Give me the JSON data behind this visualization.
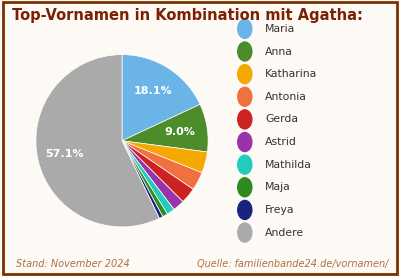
{
  "title": "Top-Vornamen in Kombination mit Agatha:",
  "labels": [
    "Maria",
    "Anna",
    "Katharina",
    "Antonia",
    "Gerda",
    "Astrid",
    "Mathilda",
    "Maja",
    "Freya",
    "Andere"
  ],
  "values": [
    18.2,
    9.1,
    4.0,
    3.5,
    3.0,
    2.2,
    1.5,
    1.0,
    0.7,
    57.6
  ],
  "colors": [
    "#6ab4e8",
    "#4d8c2a",
    "#f5a800",
    "#f07040",
    "#cc2222",
    "#9933aa",
    "#22ccbb",
    "#2e8b20",
    "#1a237e",
    "#aaaaaa"
  ],
  "footer_left": "Stand: November 2024",
  "footer_right": "Quelle: familienbande24.de/vornamen/",
  "title_color": "#7b2000",
  "footer_color": "#b07040",
  "bg_color": "#fdfaf5",
  "border_color": "#7b3000"
}
